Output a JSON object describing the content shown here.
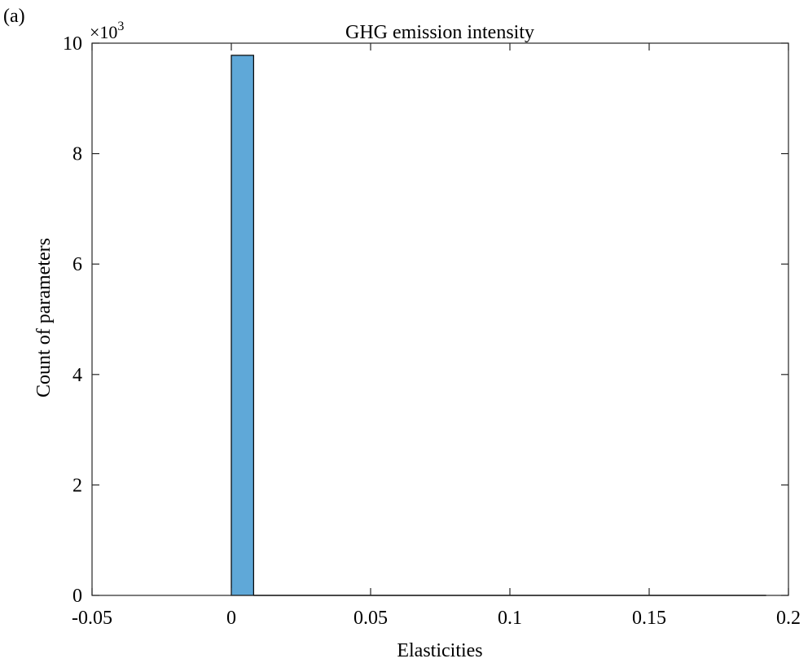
{
  "panel_label": "(a)",
  "chart_data": {
    "type": "bar",
    "title": "GHG emission intensity",
    "xlabel": "Elasticities",
    "ylabel": "Count of parameters",
    "y_exponent_label": "×10",
    "y_exponent_power": "3",
    "xlim": [
      -0.05,
      0.2
    ],
    "ylim": [
      0,
      10
    ],
    "x_ticks": [
      -0.05,
      0,
      0.05,
      0.1,
      0.15,
      0.2
    ],
    "x_tick_labels": [
      "-0.05",
      "0",
      "0.05",
      "0.1",
      "0.15",
      "0.2"
    ],
    "y_ticks": [
      0,
      2,
      4,
      6,
      8,
      10
    ],
    "y_tick_labels": [
      "0",
      "2",
      "4",
      "6",
      "8",
      "10"
    ],
    "bins": [
      {
        "x0": 0.0,
        "x1": 0.008,
        "value": 9.78
      },
      {
        "x0": 0.008,
        "x1": 0.192,
        "value": 0.0
      }
    ],
    "bar_color": "#5fa8d8",
    "bar_edge_color": "#000000",
    "grid": false
  }
}
